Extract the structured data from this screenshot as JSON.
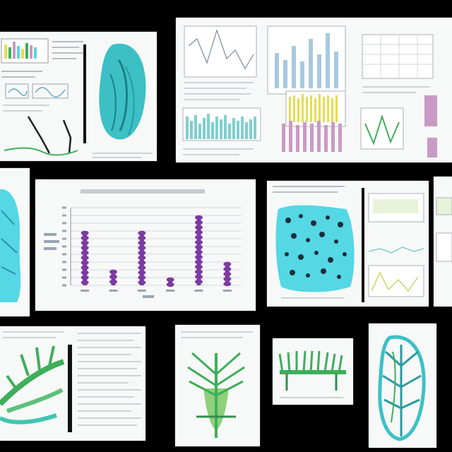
{
  "colors": {
    "background": "#000000",
    "paper": "#f7f8f8",
    "teal": "#3cc0c6",
    "cyan": "#55d7e4",
    "green": "#3fae5a",
    "purple": "#7d3aa1",
    "yellow": "#e6dc52",
    "pink": "#c99ac3",
    "grid": "#c9cdd2"
  },
  "chart_data": {
    "type": "bar",
    "categories": [
      "",
      "",
      "",
      "",
      "",
      ""
    ],
    "values": [
      7,
      2,
      7,
      1,
      9,
      3
    ],
    "ylim": [
      0,
      10
    ],
    "grid": true
  },
  "icons": [
    "jellyfish-icon",
    "coral-branch-icon",
    "spotted-tissue-icon",
    "leaf-skeleton-icon"
  ]
}
